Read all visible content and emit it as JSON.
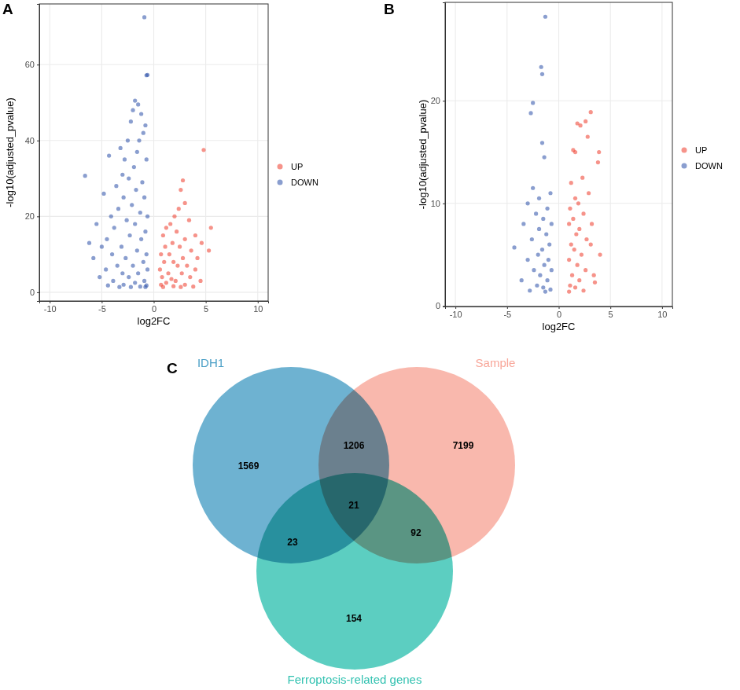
{
  "chart_data": [
    {
      "type": "scatter",
      "title": "A",
      "x_label": "log2FC",
      "y_label": "-log10(adjusted_pvalue)",
      "xlim": [
        -11,
        11
      ],
      "xticks": [
        -10,
        -5,
        0,
        5,
        10
      ],
      "ylim": [
        -2.3,
        76
      ],
      "yticks": [
        0,
        20,
        40,
        60
      ],
      "grid": true,
      "legend": "right",
      "series": [
        {
          "name": "UP",
          "color": "#ee3b2a",
          "x": [
            4.8,
            2.8,
            2.6,
            3.0,
            2.4,
            2.0,
            3.4,
            1.6,
            1.2,
            5.5,
            2.2,
            4.0,
            0.9,
            3.0,
            1.8,
            4.6,
            2.5,
            1.1,
            5.3,
            3.6,
            1.5,
            0.7,
            2.8,
            4.2,
            1.9,
            1.0,
            3.2,
            2.3,
            0.6,
            4.0,
            1.4,
            2.7,
            3.5,
            0.8,
            1.7,
            2.1,
            4.5,
            1.2,
            3.0,
            0.7,
            1.9,
            2.6,
            0.9,
            3.8
          ],
          "values": [
            37.5,
            29.5,
            27,
            23.5,
            22,
            20,
            19,
            18,
            17,
            17,
            16,
            15,
            15,
            14,
            13,
            13,
            12,
            12,
            11,
            11,
            10,
            10,
            9,
            9,
            8,
            8,
            7,
            7,
            6,
            6,
            5,
            5,
            4,
            4,
            3.5,
            3,
            3,
            2.5,
            2,
            2,
            1.6,
            1.4,
            1.4,
            1.5
          ]
        },
        {
          "name": "DOWN",
          "color": "#2a4fa8",
          "x": [
            -0.9,
            -0.7,
            -0.6,
            -1.8,
            -1.5,
            -2.0,
            -1.2,
            -2.2,
            -0.8,
            -1.0,
            -2.5,
            -1.4,
            -3.2,
            -1.6,
            -4.3,
            -2.8,
            -0.7,
            -1.9,
            -3.0,
            -6.6,
            -2.4,
            -1.1,
            -3.6,
            -1.7,
            -4.8,
            -2.9,
            -0.9,
            -2.1,
            -3.4,
            -1.3,
            -4.1,
            -0.6,
            -2.6,
            -5.5,
            -1.8,
            -3.8,
            -0.8,
            -2.3,
            -4.5,
            -1.2,
            -6.2,
            -5.0,
            -3.1,
            -1.6,
            -0.7,
            -4.0,
            -2.7,
            -5.8,
            -1.0,
            -3.5,
            -2.0,
            -4.6,
            -0.6,
            -1.5,
            -3.0,
            -5.2,
            -2.4,
            -0.9,
            -3.9,
            -1.8,
            -2.9,
            -0.7,
            -4.4,
            -1.3,
            -2.2,
            -3.3,
            -0.8
          ],
          "values": [
            72.5,
            57.2,
            57.3,
            50.5,
            49.5,
            48,
            47,
            45,
            44,
            42,
            40,
            40,
            38,
            37,
            36,
            35,
            35,
            33,
            31,
            30.7,
            30,
            29,
            28,
            27,
            26,
            25,
            25,
            23,
            22,
            21,
            20,
            20,
            19,
            18,
            18,
            17,
            16,
            15,
            14,
            14,
            13,
            12,
            12,
            11,
            10,
            10,
            9,
            9,
            8,
            7,
            7,
            6,
            6,
            5,
            5,
            4,
            4,
            3,
            3,
            2.5,
            2,
            1.8,
            1.8,
            1.5,
            1.4,
            1.4,
            1.4
          ]
        }
      ]
    },
    {
      "type": "scatter",
      "title": "B",
      "x_label": "log2FC",
      "y_label": "-log10(adjusted_pvalue)",
      "xlim": [
        -11,
        11
      ],
      "xticks": [
        -10,
        -5,
        0,
        5,
        10
      ],
      "ylim": [
        -0.05,
        29.6
      ],
      "yticks": [
        0,
        10,
        20
      ],
      "grid": true,
      "legend": "right",
      "series": [
        {
          "name": "UP",
          "color": "#ee3b2a",
          "x": [
            3.1,
            2.6,
            1.8,
            2.1,
            2.8,
            1.4,
            3.9,
            1.6,
            3.8,
            2.3,
            1.2,
            2.9,
            1.6,
            1.9,
            1.1,
            2.4,
            1.4,
            3.2,
            1.0,
            2.0,
            1.7,
            2.7,
            1.2,
            3.1,
            1.5,
            4.0,
            2.2,
            1.0,
            1.8,
            2.6,
            1.3,
            3.4,
            2.0,
            1.1,
            3.5,
            1.6,
            2.4,
            1.0
          ],
          "values": [
            18.9,
            18,
            17.8,
            17.6,
            16.5,
            15.2,
            15,
            15,
            14,
            12.5,
            12,
            11,
            10.5,
            10,
            9.5,
            9,
            8.5,
            8,
            8,
            7.5,
            7,
            6.5,
            6,
            6,
            5.5,
            5,
            5,
            4.5,
            4,
            3.5,
            3,
            3,
            2.5,
            2,
            2.3,
            1.8,
            1.5,
            1.4
          ]
        },
        {
          "name": "DOWN",
          "color": "#2a4fa8",
          "x": [
            -1.3,
            -1.7,
            -1.6,
            -2.5,
            -2.7,
            -1.6,
            -1.4,
            -2.5,
            -0.8,
            -1.9,
            -3.0,
            -1.1,
            -2.2,
            -1.5,
            -0.7,
            -3.4,
            -1.9,
            -1.2,
            -2.6,
            -0.9,
            -4.3,
            -1.6,
            -2.0,
            -3.0,
            -1.0,
            -1.4,
            -2.4,
            -0.7,
            -1.8,
            -3.6,
            -1.1,
            -2.1,
            -1.5,
            -0.8,
            -2.8,
            -1.3
          ],
          "values": [
            28.2,
            23.3,
            22.6,
            19.8,
            18.8,
            15.9,
            14.5,
            11.5,
            11,
            10.5,
            10,
            9.5,
            9,
            8.5,
            8,
            8,
            7.5,
            7,
            6.5,
            6,
            5.7,
            5.5,
            5,
            4.5,
            4.5,
            4,
            3.5,
            3.5,
            3,
            2.5,
            2.5,
            2,
            1.8,
            1.6,
            1.5,
            1.4
          ]
        }
      ]
    },
    {
      "type": "venn",
      "title": "C",
      "sets": [
        {
          "name": "IDH1",
          "color": "#4a9fc6"
        },
        {
          "name": "Sample",
          "color": "#f8a699"
        },
        {
          "name": "Ferroptosis-related genes",
          "color": "#33c2b1"
        }
      ],
      "regions": [
        {
          "sets": [
            "IDH1"
          ],
          "value": 1569
        },
        {
          "sets": [
            "IDH1",
            "Sample"
          ],
          "value": 1206
        },
        {
          "sets": [
            "Sample"
          ],
          "value": 7199
        },
        {
          "sets": [
            "IDH1",
            "Sample",
            "Ferroptosis-related genes"
          ],
          "value": 21
        },
        {
          "sets": [
            "IDH1",
            "Ferroptosis-related genes"
          ],
          "value": 23
        },
        {
          "sets": [
            "Sample",
            "Ferroptosis-related genes"
          ],
          "value": 92
        },
        {
          "sets": [
            "Ferroptosis-related genes"
          ],
          "value": 154
        }
      ]
    }
  ]
}
